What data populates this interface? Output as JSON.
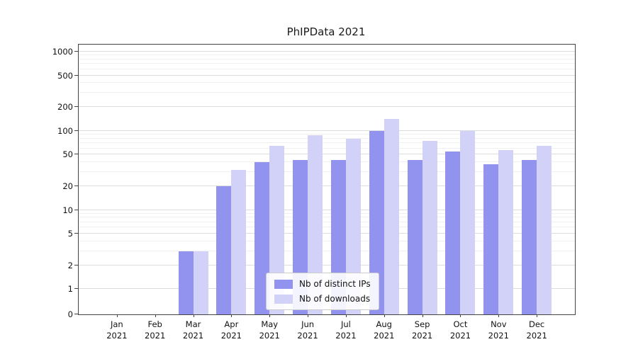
{
  "chart_data": {
    "type": "bar",
    "title": "PhIPData 2021",
    "categories": [
      "Jan 2021",
      "Feb 2021",
      "Mar 2021",
      "Apr 2021",
      "May 2021",
      "Jun 2021",
      "Jul 2021",
      "Aug 2021",
      "Sep 2021",
      "Oct 2021",
      "Nov 2021",
      "Dec 2021"
    ],
    "series": [
      {
        "name": "Nb of distinct IPs",
        "color": "#9193ee",
        "values": [
          0,
          0,
          3,
          20,
          40,
          43,
          43,
          100,
          43,
          55,
          38,
          43
        ]
      },
      {
        "name": "Nb of downloads",
        "color": "#d2d2f9",
        "values": [
          0,
          0,
          3,
          32,
          65,
          88,
          80,
          140,
          75,
          100,
          57,
          65
        ]
      }
    ],
    "xlabel": "",
    "ylabel": "",
    "yscale": "symlog",
    "yticks": [
      0,
      1,
      2,
      5,
      10,
      20,
      50,
      100,
      200,
      500,
      1000
    ],
    "minor_yticks": [
      3,
      4,
      6,
      7,
      8,
      9,
      30,
      40,
      60,
      70,
      80,
      90,
      300,
      400,
      600,
      700,
      800,
      900
    ],
    "ylim": [
      0,
      1000
    ],
    "grid": true,
    "legend_position": "lower center"
  }
}
